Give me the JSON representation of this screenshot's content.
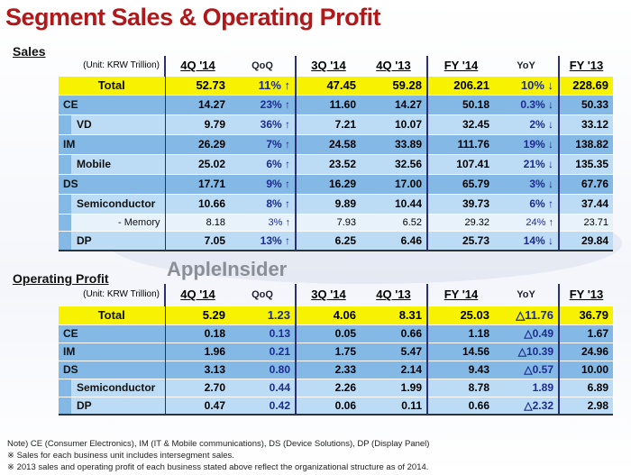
{
  "title": "Segment Sales & Operating Profit",
  "watermark": "AppleInsider",
  "headers": [
    "(Unit: KRW Trillion)",
    "4Q '14",
    "QoQ",
    "3Q '14",
    "4Q '13",
    "FY '14",
    "YoY",
    "FY '13"
  ],
  "sales": {
    "label": "Sales",
    "rows": [
      {
        "type": "total",
        "cells": [
          "Total",
          "52.73",
          "11% ↑",
          "47.45",
          "59.28",
          "206.21",
          "10% ↓",
          "228.69"
        ]
      },
      {
        "type": "main",
        "cells": [
          "CE",
          "14.27",
          "23% ↑",
          "11.60",
          "14.27",
          "50.18",
          "0.3% ↓",
          "50.33"
        ]
      },
      {
        "type": "sub",
        "cells": [
          "VD",
          "9.79",
          "36% ↑",
          "7.21",
          "10.07",
          "32.45",
          "2% ↓",
          "33.12"
        ]
      },
      {
        "type": "main",
        "cells": [
          "IM",
          "26.29",
          "7% ↑",
          "24.58",
          "33.89",
          "111.76",
          "19% ↓",
          "138.82"
        ]
      },
      {
        "type": "sub",
        "cells": [
          "Mobile",
          "25.02",
          "6% ↑",
          "23.52",
          "32.56",
          "107.41",
          "21% ↓",
          "135.35"
        ]
      },
      {
        "type": "main",
        "cells": [
          "DS",
          "17.71",
          "9% ↑",
          "16.29",
          "17.00",
          "65.79",
          "3% ↓",
          "67.76"
        ]
      },
      {
        "type": "sub",
        "cells": [
          "Semiconductor",
          "10.66",
          "8% ↑",
          "9.89",
          "10.44",
          "39.73",
          "6% ↑",
          "37.44"
        ]
      },
      {
        "type": "mem",
        "cells": [
          "- Memory",
          "8.18",
          "3% ↑",
          "7.93",
          "6.52",
          "29.32",
          "24% ↑",
          "23.71"
        ]
      },
      {
        "type": "sub",
        "cells": [
          "DP",
          "7.05",
          "13% ↑",
          "6.25",
          "6.46",
          "25.73",
          "14% ↓",
          "29.84"
        ]
      }
    ]
  },
  "op": {
    "label": "Operating Profit",
    "rows": [
      {
        "type": "total",
        "cells": [
          "Total",
          "5.29",
          "1.23",
          "4.06",
          "8.31",
          "25.03",
          "△11.76",
          "36.79"
        ]
      },
      {
        "type": "main",
        "cells": [
          "CE",
          "0.18",
          "0.13",
          "0.05",
          "0.66",
          "1.18",
          "△0.49",
          "1.67"
        ]
      },
      {
        "type": "main",
        "cells": [
          "IM",
          "1.96",
          "0.21",
          "1.75",
          "5.47",
          "14.56",
          "△10.39",
          "24.96"
        ]
      },
      {
        "type": "main",
        "cells": [
          "DS",
          "3.13",
          "0.80",
          "2.33",
          "2.14",
          "9.43",
          "△0.57",
          "10.00"
        ]
      },
      {
        "type": "sub",
        "cells": [
          "Semiconductor",
          "2.70",
          "0.44",
          "2.26",
          "1.99",
          "8.78",
          "1.89",
          "6.89"
        ]
      },
      {
        "type": "sub",
        "cells": [
          "DP",
          "0.47",
          "0.42",
          "0.06",
          "0.11",
          "0.66",
          "△2.32",
          "2.98"
        ]
      }
    ]
  },
  "notes": [
    "Note) CE (Consumer Electronics), IM (IT & Mobile communications),  DS (Device Solutions), DP (Display Panel)",
    "※ Sales for each business unit includes intersegment sales.",
    "※ 2013 sales and operating profit of each business stated above reflect the organizational structure as of 2014."
  ]
}
